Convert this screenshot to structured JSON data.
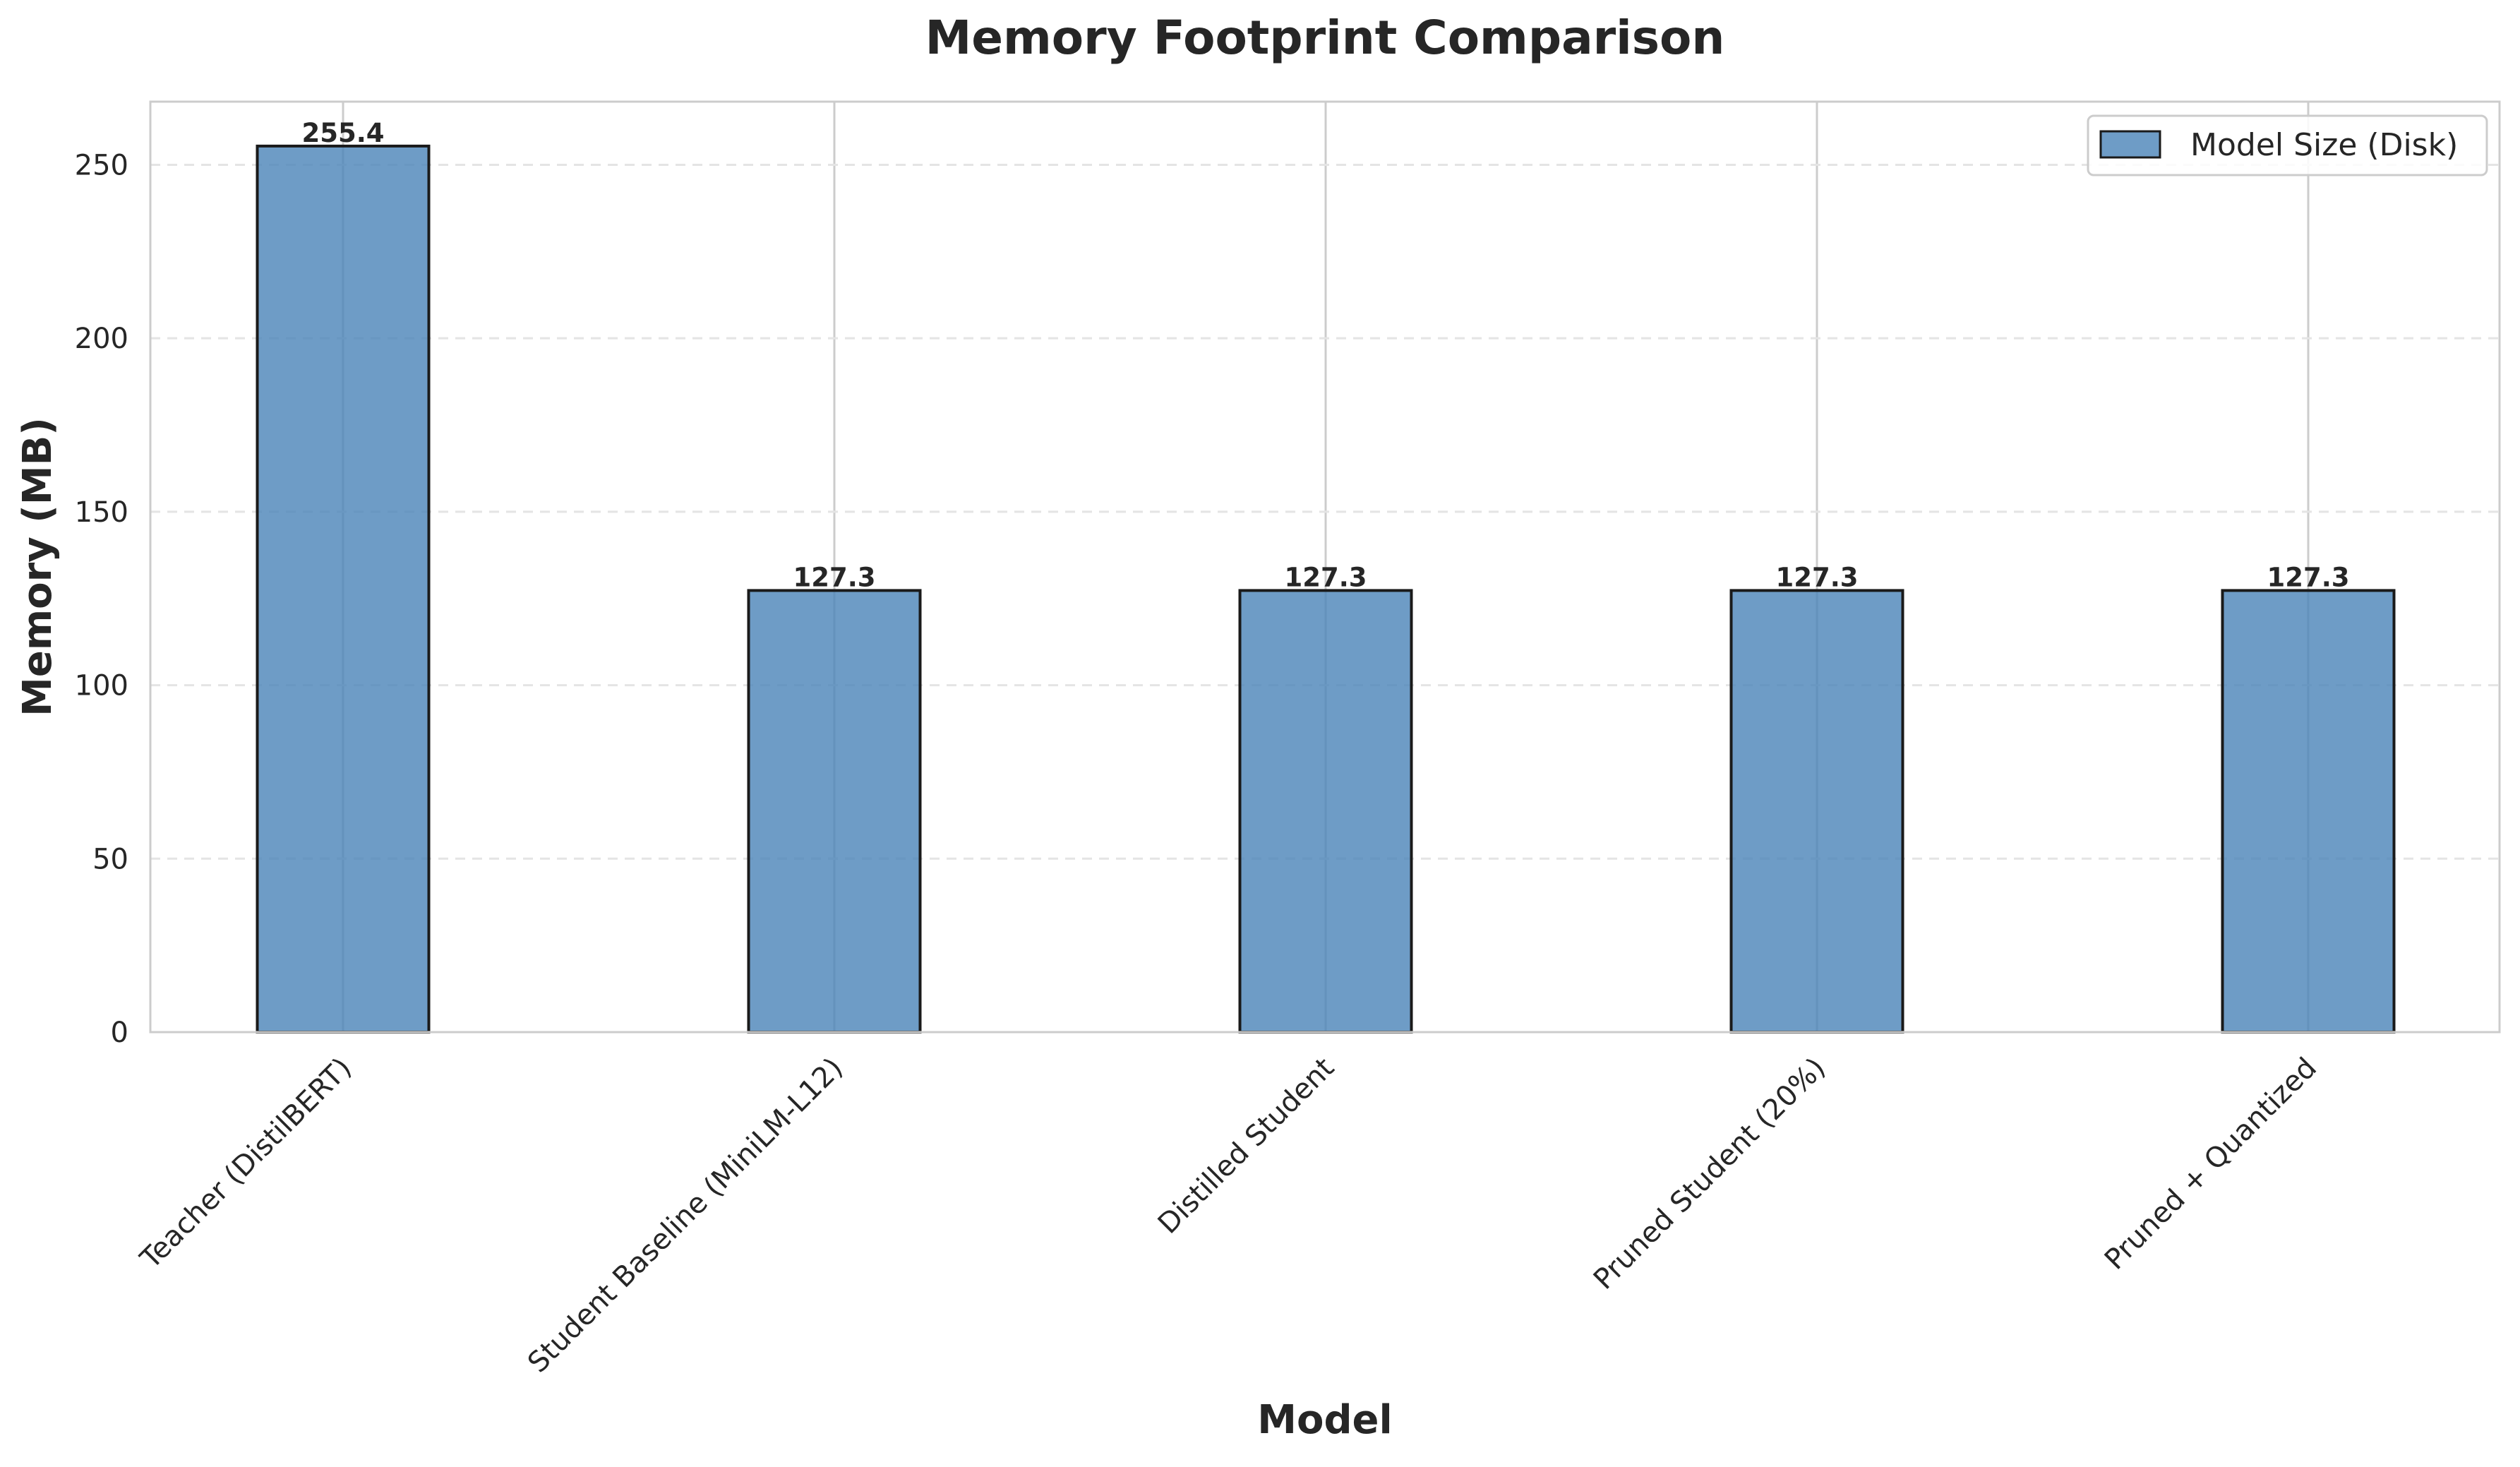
{
  "chart_data": {
    "type": "bar",
    "title": "Memory Footprint Comparison",
    "xlabel": "Model",
    "ylabel": "Memory (MB)",
    "categories": [
      "Teacher (DistilBERT)",
      "Student Baseline (MiniLM-L12)",
      "Distilled Student",
      "Pruned Student (20%)",
      "Pruned + Quantized"
    ],
    "series": [
      {
        "name": "Model Size (Disk)",
        "values": [
          255.4,
          127.3,
          127.3,
          127.3,
          127.3
        ],
        "color": "#4a83b8"
      }
    ],
    "data_labels": [
      "255.4",
      "127.3",
      "127.3",
      "127.3",
      "127.3"
    ],
    "yticks": [
      0,
      50,
      100,
      150,
      200,
      250
    ],
    "ylim": [
      0,
      268.2
    ],
    "grid": {
      "x": true,
      "y": true,
      "y_style": "dashed"
    },
    "legend_position": "top-right"
  }
}
